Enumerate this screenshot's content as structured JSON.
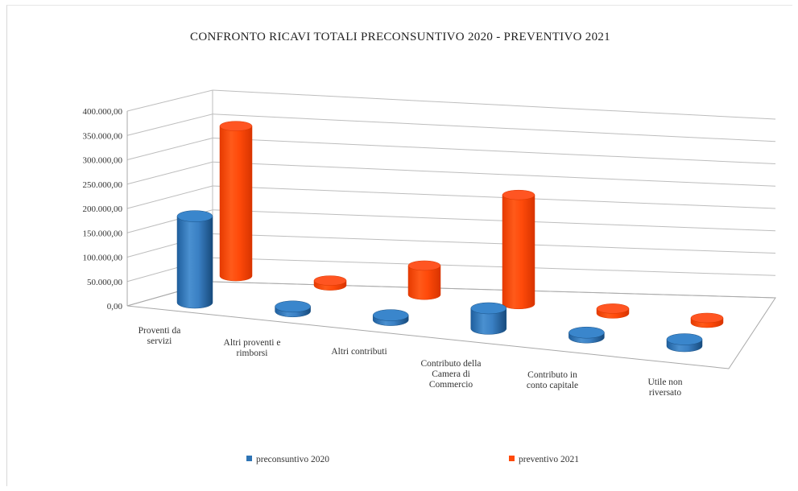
{
  "chart_data": {
    "type": "bar",
    "style": "3d-cylinder",
    "title": "CONFRONTO RICAVI TOTALI PRECONSUNTIVO 2020 - PREVENTIVO 2021",
    "categories": [
      [
        "Proventi da",
        "servizi"
      ],
      [
        "Altri proventi e",
        "rimborsi"
      ],
      [
        "Altri contributi"
      ],
      [
        "Contributo della",
        "Camera di",
        "Commercio"
      ],
      [
        "Contributo in",
        "conto capitale"
      ],
      [
        "Utile non",
        "riversato"
      ]
    ],
    "series": [
      {
        "name": "preconsuntivo 2020",
        "color": "#2e74b5",
        "values": [
          190000,
          2000,
          1500,
          45000,
          3000,
          15000
        ]
      },
      {
        "name": "preventivo 2021",
        "color": "#ff4a0a",
        "values": [
          360000,
          3000,
          70000,
          262000,
          1000,
          1500
        ]
      }
    ],
    "yticks": [
      "0,00",
      "50.000,00",
      "100.000,00",
      "150.000,00",
      "200.000,00",
      "250.000,00",
      "300.000,00",
      "350.000,00",
      "400.000,00"
    ],
    "ylim": [
      0,
      400000
    ],
    "grid": true,
    "legend": "bottom"
  }
}
